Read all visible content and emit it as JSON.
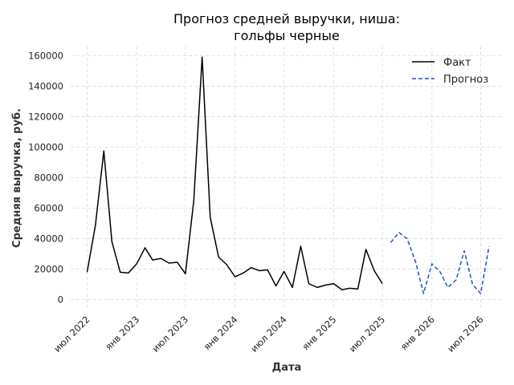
{
  "chart_data": {
    "type": "line",
    "title_lines": [
      "Прогноз средней выручки, ниша:",
      "гольфы черные"
    ],
    "xlabel": "Дата",
    "ylabel": "Средняя выручка, руб.",
    "ylim": [
      -6000,
      166000
    ],
    "xlim": [
      "2022-05-01",
      "2026-09-15"
    ],
    "y_ticks": [
      0,
      20000,
      40000,
      60000,
      80000,
      100000,
      120000,
      140000,
      160000
    ],
    "y_tick_labels": [
      "0",
      "20000",
      "40000",
      "60000",
      "80000",
      "100000",
      "120000",
      "140000",
      "160000"
    ],
    "x_ticks": [
      "2022-07-01",
      "2023-01-01",
      "2023-07-01",
      "2024-01-01",
      "2024-07-01",
      "2025-01-01",
      "2025-07-01",
      "2026-01-01",
      "2026-07-01"
    ],
    "x_tick_labels": [
      "июл 2022",
      "янв 2023",
      "июл 2023",
      "янв 2024",
      "июл 2024",
      "янв 2025",
      "июл 2025",
      "янв 2026",
      "июл 2026"
    ],
    "grid": true,
    "legend_position": "top-right",
    "series": [
      {
        "name": "Факт",
        "color": "#000000",
        "style": "solid",
        "x": [
          "2022-07-01",
          "2022-08-01",
          "2022-09-01",
          "2022-10-01",
          "2022-11-01",
          "2022-12-01",
          "2023-01-01",
          "2023-02-01",
          "2023-03-01",
          "2023-04-01",
          "2023-05-01",
          "2023-06-01",
          "2023-07-01",
          "2023-08-01",
          "2023-09-01",
          "2023-10-01",
          "2023-11-01",
          "2023-12-01",
          "2024-01-01",
          "2024-02-01",
          "2024-03-01",
          "2024-04-01",
          "2024-05-01",
          "2024-06-01",
          "2024-07-01",
          "2024-08-01",
          "2024-09-01",
          "2024-10-01",
          "2024-11-01",
          "2024-12-01",
          "2025-01-01",
          "2025-02-01",
          "2025-03-01",
          "2025-04-01",
          "2025-05-01",
          "2025-06-01",
          "2025-07-01"
        ],
        "values": [
          18000,
          49000,
          97500,
          38000,
          18000,
          17500,
          23500,
          34000,
          26000,
          27000,
          24000,
          24500,
          17000,
          65000,
          159000,
          54000,
          28000,
          23000,
          15000,
          17500,
          21000,
          19000,
          19500,
          9000,
          18500,
          8000,
          35000,
          10500,
          8000,
          9500,
          10500,
          6500,
          7500,
          7000,
          33000,
          19000,
          10500
        ]
      },
      {
        "name": "Прогноз",
        "color": "#1f4fd0",
        "style": "dashed",
        "x": [
          "2025-08-01",
          "2025-09-01",
          "2025-10-01",
          "2025-11-01",
          "2025-12-01",
          "2026-01-01",
          "2026-02-01",
          "2026-03-01",
          "2026-04-01",
          "2026-05-01",
          "2026-06-01",
          "2026-07-01",
          "2026-08-01"
        ],
        "values": [
          37500,
          44000,
          40000,
          25000,
          4000,
          23500,
          18000,
          8000,
          13000,
          32000,
          10000,
          4000,
          35000
        ]
      }
    ]
  }
}
